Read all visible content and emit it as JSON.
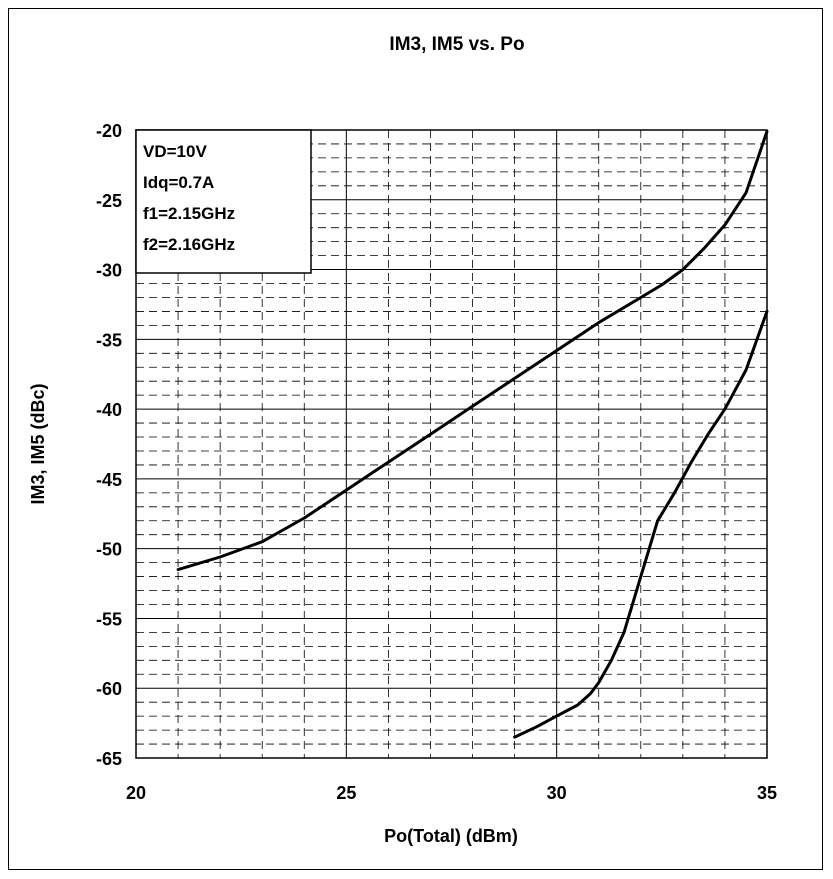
{
  "chart_data": {
    "type": "line",
    "title": "IM3, IM5 vs. Po",
    "xlabel": "Po(Total) (dBm)",
    "ylabel": "IM3, IM5 (dBc)",
    "xlim": [
      20,
      35
    ],
    "ylim": [
      -65,
      -20
    ],
    "x_major_ticks": [
      20,
      25,
      30,
      35
    ],
    "y_major_ticks": [
      -20,
      -25,
      -30,
      -35,
      -40,
      -45,
      -50,
      -55,
      -60,
      -65
    ],
    "x_minor_step": 1,
    "y_minor_step": 1,
    "grid": true,
    "legend_placement": "top-left",
    "annotation_lines": [
      "VD=10V",
      "Idq=0.7A",
      "f1=2.15GHz",
      "f2=2.16GHz"
    ],
    "line_color": "#000000",
    "series": [
      {
        "x": [
          21,
          22,
          23,
          24,
          25,
          26,
          27,
          28,
          29,
          30,
          31,
          32,
          32.5,
          33,
          33.5,
          34,
          34.5,
          35
        ],
        "y": [
          -51.5,
          -50.6,
          -49.5,
          -47.8,
          -45.8,
          -43.8,
          -41.8,
          -39.8,
          -37.8,
          -35.8,
          -33.8,
          -32.0,
          -31.1,
          -30.0,
          -28.5,
          -26.8,
          -24.5,
          -20.1
        ]
      },
      {
        "x": [
          29,
          29.5,
          30,
          30.5,
          30.8,
          31,
          31.3,
          31.6,
          32,
          32.4,
          32.8,
          33.2,
          33.6,
          34,
          34.5,
          35
        ],
        "y": [
          -63.5,
          -62.8,
          -62.0,
          -61.2,
          -60.4,
          -59.6,
          -58.0,
          -56.0,
          -52.0,
          -48.0,
          -46.0,
          -43.8,
          -41.8,
          -40.0,
          -37.2,
          -33.0
        ]
      }
    ]
  }
}
